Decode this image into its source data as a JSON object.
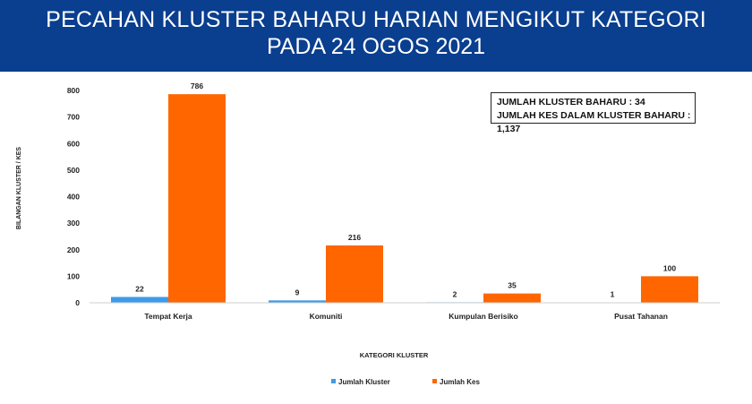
{
  "header": {
    "title_line1": "PECAHAN KLUSTER BAHARU HARIAN MENGIKUT KATEGORI",
    "title_line2": "PADA 24 OGOS 2021"
  },
  "infobox": {
    "line1": "JUMLAH KLUSTER BAHARU : 34",
    "line2": "JUMLAH KES DALAM KLUSTER  BAHARU : 1,137"
  },
  "colors": {
    "header_bg": "#0a3e8f",
    "kluster": "#3d9be9",
    "kes": "#ff6600"
  },
  "chart_data": {
    "type": "bar",
    "categories": [
      "Tempat Kerja",
      "Komuniti",
      "Kumpulan Berisiko",
      "Pusat Tahanan"
    ],
    "series": [
      {
        "name": "Jumlah Kluster",
        "values": [
          22,
          9,
          2,
          1
        ],
        "color": "#3d9be9"
      },
      {
        "name": "Jumlah Kes",
        "values": [
          786,
          216,
          35,
          100
        ],
        "color": "#ff6600"
      }
    ],
    "xlabel": "KATEGORI KLUSTER",
    "ylabel": "BILANGAN KLUSTER / KES",
    "ylim": [
      0,
      800
    ],
    "yticks": [
      0,
      100,
      200,
      300,
      400,
      500,
      600,
      700,
      800
    ],
    "grid": false,
    "legend": "bottom"
  }
}
